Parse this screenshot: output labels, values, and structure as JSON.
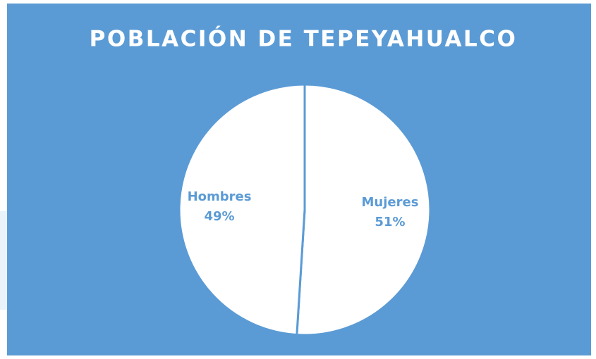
{
  "chart_data": {
    "type": "pie",
    "title": "POBLACIÓN DE TEPEYAHUALCO",
    "categories": [
      "Mujeres",
      "Hombres"
    ],
    "values": [
      51,
      49
    ],
    "value_labels": [
      "51%",
      "49%"
    ],
    "colors": [
      "#ffffff",
      "#ffffff"
    ],
    "background": "#5b9bd5",
    "label_color": "#5b9bd5"
  }
}
